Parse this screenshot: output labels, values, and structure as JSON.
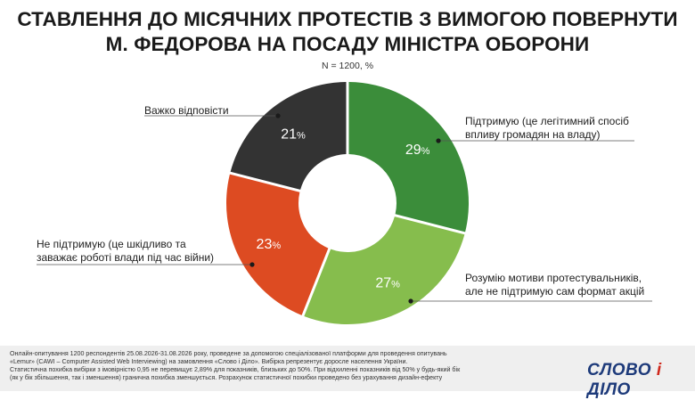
{
  "title": "СТАВЛЕННЯ ДО МІСЯЧНИХ ПРОТЕСТІВ З ВИМОГОЮ ПОВЕРНУТИ М. ФЕДОРОВА НА ПОСАДУ МІНІСТРА ОБОРОНИ",
  "subtitle": "N = 1200, %",
  "chart_data": {
    "type": "pie",
    "donut": true,
    "title": "СТАВЛЕННЯ ДО МІСЯЧНИХ ПРОТЕСТІВ З ВИМОГОЮ ПОВЕРНУТИ М. ФЕДОРОВА НА ПОСАДУ МІНІСТРА ОБОРОНИ",
    "subtitle": "N = 1200, %",
    "unit": "%",
    "slices": [
      {
        "label": "Підтримую (це легітимний спосіб впливу громадян на владу)",
        "value": 29,
        "color": "#3b8d3a"
      },
      {
        "label": "Розумію мотиви протестувальників, але не підтримую сам формат акцій",
        "value": 27,
        "color": "#86bd4d"
      },
      {
        "label": "Не підтримую (це шкідливо та заважає роботі влади під час війни)",
        "value": 23,
        "color": "#dd4b22"
      },
      {
        "label": "Важко відповісти",
        "value": 21,
        "color": "#333333"
      }
    ]
  },
  "labels": {
    "support_line1": "Підтримую (це легітимний спосіб",
    "support_line2": "впливу громадян на владу)",
    "understand_line1": "Розумію мотиви протестувальників,",
    "understand_line2": "але не підтримую сам формат акцій",
    "oppose_line1": "Не підтримую (це шкідливо та",
    "oppose_line2": "заважає роботі влади під час війни)",
    "hard_line1": "Важко відповісти"
  },
  "footnote": [
    "Онлайн-опитування 1200 респондентів 25.08.2026-31.08.2026 року, проведене за допомогою спеціалізованої платформи для проведення опитувань",
    "«Lemur» (CAWI – Computer Assisted Web Interviewing) на замовлення «Слово і Діло». Вибірка репрезентує доросле населення України.",
    "Статистична похибка вибірки з імовірністю 0,95 не перевищує 2,89% для показників, близьких до 50%. При відхиленні показників від 50% у будь-який бік",
    "(як у бік збільшення, так і зменшення) гранична похибка зменшується. Розрахунок статистичної похибки проведено без урахування дизайн-ефекту"
  ],
  "logo": {
    "part1": "СЛОВО ",
    "part2": "і",
    "part3": " ДІЛО"
  }
}
